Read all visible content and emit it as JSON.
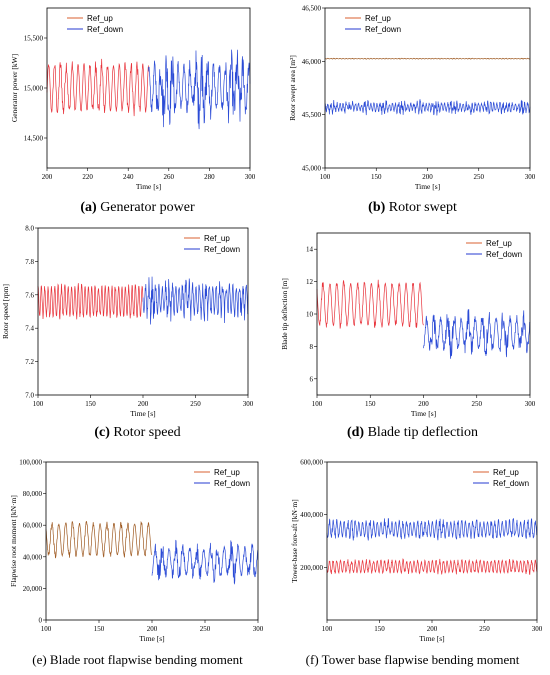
{
  "colors": {
    "up": "#e8333b",
    "up_dark": "#9e5a22",
    "down": "#2b4bd6",
    "legend_up": "#e07a52",
    "legend_down": "#4a5bd8"
  },
  "chart_data": [
    {
      "id": "a",
      "type": "line",
      "caption_label": "(a)",
      "caption_text": " Generator power",
      "xlabel": "Time [s]",
      "ylabel": "Generator power [kW]",
      "xlim": [
        200,
        300
      ],
      "ylim": [
        14200,
        15800
      ],
      "xticks": [
        200,
        220,
        240,
        260,
        280,
        300
      ],
      "xtick_labels": [
        "200",
        "220",
        "240",
        "260",
        "280",
        "300"
      ],
      "yticks": [
        14500,
        15000,
        15500
      ],
      "ytick_labels": [
        "14,500",
        "15,000",
        "15,500"
      ],
      "legend": "top-left",
      "series": [
        {
          "name": "Ref_up",
          "key": "up",
          "x_range": [
            200,
            250
          ],
          "center": 15000,
          "amp": 230,
          "noise": 70,
          "period": 2.9
        },
        {
          "name": "Ref_down",
          "key": "down",
          "x_range": [
            250,
            300
          ],
          "center": 15000,
          "amp": 200,
          "noise": 230,
          "period": 2.9
        }
      ]
    },
    {
      "id": "b",
      "type": "line",
      "caption_label": "(b)",
      "caption_text": " Rotor swept",
      "xlabel": "Time [s]",
      "ylabel": "Rotor swept area [m²]",
      "xlim": [
        100,
        300
      ],
      "ylim": [
        45000,
        46500
      ],
      "xticks": [
        100,
        150,
        200,
        250,
        300
      ],
      "xtick_labels": [
        "100",
        "150",
        "200",
        "250",
        "300"
      ],
      "yticks": [
        45000,
        45500,
        46000,
        46500
      ],
      "ytick_labels": [
        "45,000",
        "45,500",
        "46,000",
        "46,500"
      ],
      "legend": "top-left",
      "series": [
        {
          "name": "Ref_up",
          "key": "up_dark",
          "x_range": [
            100,
            300
          ],
          "center": 46025,
          "amp": 3,
          "noise": 2,
          "period": 3
        },
        {
          "name": "Ref_down",
          "key": "down",
          "x_range": [
            100,
            300
          ],
          "center": 45570,
          "amp": 35,
          "noise": 45,
          "period": 3
        }
      ]
    },
    {
      "id": "c",
      "type": "line",
      "caption_label": "(c)",
      "caption_text": " Rotor speed",
      "xlabel": "Time [s]",
      "ylabel": "Rotor speed [rpm]",
      "xlim": [
        100,
        300
      ],
      "ylim": [
        7.0,
        8.0
      ],
      "xticks": [
        100,
        150,
        200,
        250,
        300
      ],
      "xtick_labels": [
        "100",
        "150",
        "200",
        "250",
        "300"
      ],
      "yticks": [
        7.0,
        7.2,
        7.4,
        7.6,
        7.8,
        8.0
      ],
      "ytick_labels": [
        "7.0",
        "7.2",
        "7.4",
        "7.6",
        "7.8",
        "8.0"
      ],
      "legend": "top-right",
      "series": [
        {
          "name": "Ref_up",
          "key": "up",
          "x_range": [
            100,
            200
          ],
          "center": 7.56,
          "amp": 0.09,
          "noise": 0.025,
          "period": 3.2
        },
        {
          "name": "Ref_down",
          "key": "down",
          "x_range": [
            200,
            300
          ],
          "center": 7.57,
          "amp": 0.08,
          "noise": 0.07,
          "period": 3.2
        }
      ]
    },
    {
      "id": "d",
      "type": "line",
      "caption_label": "(d)",
      "caption_text": " Blade tip deflection",
      "xlabel": "Time [s]",
      "ylabel": "Blade tip deflection [m]",
      "xlim": [
        100,
        300
      ],
      "ylim": [
        5,
        15
      ],
      "xticks": [
        100,
        150,
        200,
        250,
        300
      ],
      "xtick_labels": [
        "100",
        "150",
        "200",
        "250",
        "300"
      ],
      "yticks": [
        6,
        8,
        10,
        12,
        14
      ],
      "ytick_labels": [
        "6",
        "8",
        "10",
        "12",
        "14"
      ],
      "legend": "top-right",
      "series": [
        {
          "name": "Ref_up",
          "key": "up",
          "x_range": [
            100,
            200
          ],
          "center": 10.6,
          "amp": 1.3,
          "noise": 0.25,
          "period": 6.5
        },
        {
          "name": "Ref_down",
          "key": "down",
          "x_range": [
            200,
            300
          ],
          "center": 8.8,
          "amp": 0.9,
          "noise": 0.75,
          "period": 6.5
        }
      ]
    },
    {
      "id": "e",
      "type": "line",
      "caption_label": "",
      "caption_text": "(e) Blade root flapwise bending moment",
      "xlabel": "Time [s]",
      "ylabel": "Flapwise root moment [kN·m]",
      "xlim": [
        100,
        300
      ],
      "ylim": [
        0,
        100000
      ],
      "xticks": [
        100,
        150,
        200,
        250,
        300
      ],
      "xtick_labels": [
        "100",
        "150",
        "200",
        "250",
        "300"
      ],
      "yticks": [
        0,
        20000,
        40000,
        60000,
        80000,
        100000
      ],
      "ytick_labels": [
        "0",
        "20,000",
        "40,000",
        "60,000",
        "80,000",
        "100,000"
      ],
      "legend": "top-right",
      "series": [
        {
          "name": "Ref_up",
          "key": "up_dark",
          "x_range": [
            100,
            200
          ],
          "center": 51000,
          "amp": 10000,
          "noise": 2500,
          "period": 6.5
        },
        {
          "name": "Ref_down",
          "key": "down",
          "x_range": [
            200,
            300
          ],
          "center": 37000,
          "amp": 8000,
          "noise": 7000,
          "period": 6.5
        }
      ]
    },
    {
      "id": "f",
      "type": "line",
      "caption_label": "",
      "caption_text": "(f) Tower base flapwise bending moment",
      "xlabel": "Time [s]",
      "ylabel": "Tower-base fore-aft [kN·m]",
      "xlim": [
        100,
        300
      ],
      "ylim": [
        0,
        600000
      ],
      "xticks": [
        100,
        150,
        200,
        250,
        300
      ],
      "xtick_labels": [
        "100",
        "150",
        "200",
        "250",
        "300"
      ],
      "yticks": [
        200000,
        400000,
        600000
      ],
      "ytick_labels": [
        "200,000",
        "400,000",
        "600,000"
      ],
      "legend": "top-right",
      "series": [
        {
          "name": "Ref_up",
          "key": "up",
          "x_range": [
            100,
            300
          ],
          "center": 203000,
          "amp": 22000,
          "noise": 9000,
          "period": 3.5
        },
        {
          "name": "Ref_down",
          "key": "down",
          "x_range": [
            100,
            300
          ],
          "center": 345000,
          "amp": 28000,
          "noise": 18000,
          "period": 3.5
        }
      ]
    }
  ]
}
